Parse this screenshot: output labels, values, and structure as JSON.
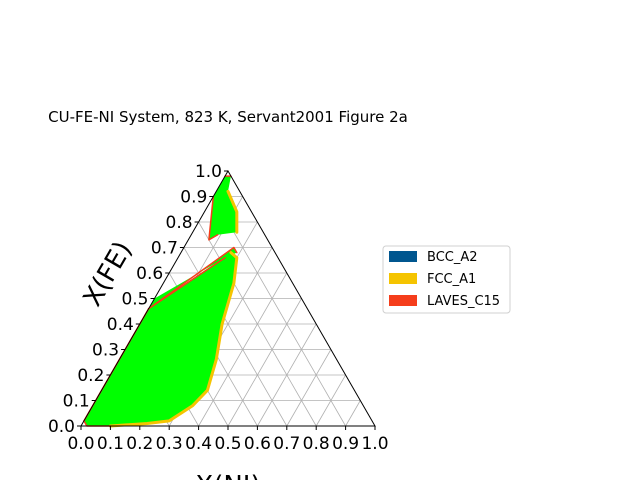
{
  "chart_data": {
    "type": "scatter",
    "title": "CU-FE-NI System, 823 K, Servant2001 Figure 2a",
    "xlabel": "X(NI)",
    "ylabel": "X(FE)",
    "xlim": [
      0,
      1
    ],
    "ylim": [
      0,
      1
    ],
    "grid": true,
    "legend_placement": "center-right",
    "x_tick_labels": [
      "0.0",
      "0.1",
      "0.2",
      "0.3",
      "0.4",
      "0.5",
      "0.6",
      "0.7",
      "0.8",
      "0.9",
      "1.0"
    ],
    "y_tick_labels": [
      "0.0",
      "0.1",
      "0.2",
      "0.3",
      "0.4",
      "0.5",
      "0.6",
      "0.7",
      "0.8",
      "0.9",
      "1.0"
    ],
    "legend": [
      {
        "name": "BCC_A2",
        "color": "#00568f"
      },
      {
        "name": "FCC_A1",
        "color": "#f5c400"
      },
      {
        "name": "LAVES_C15",
        "color": "#f53d1b"
      }
    ],
    "tie_line_color": "#00ff00",
    "regions": [
      {
        "kind": "two-phase",
        "color": "#00ff00",
        "boundary": [
          [
            0.0,
            0.98
          ],
          [
            0.02,
            0.98
          ],
          [
            0.04,
            0.92
          ],
          [
            0.11,
            0.84
          ],
          [
            0.15,
            0.76
          ],
          [
            0.09,
            0.75
          ],
          [
            0.07,
            0.73
          ],
          [
            0.0,
            0.9
          ]
        ]
      },
      {
        "kind": "two-phase",
        "color": "#00ff00",
        "boundary": [
          [
            0.0,
            0.46
          ],
          [
            0.17,
            0.7
          ],
          [
            0.19,
            0.68
          ],
          [
            0.16,
            0.66
          ],
          [
            0.0,
            0.5
          ]
        ]
      },
      {
        "kind": "two-phase",
        "color": "#00ff00",
        "boundary": [
          [
            0.0,
            0.46
          ],
          [
            0.17,
            0.68
          ],
          [
            0.2,
            0.66
          ],
          [
            0.24,
            0.56
          ],
          [
            0.28,
            0.4
          ],
          [
            0.33,
            0.26
          ],
          [
            0.36,
            0.14
          ],
          [
            0.34,
            0.08
          ],
          [
            0.29,
            0.02
          ],
          [
            0.22,
            0.01
          ],
          [
            0.1,
            0.0
          ],
          [
            0.02,
            0.0
          ],
          [
            0.0,
            0.02
          ]
        ]
      }
    ],
    "phase_boundaries": [
      {
        "phase": "FCC_A1",
        "points": [
          [
            0.17,
            0.68
          ],
          [
            0.2,
            0.66
          ],
          [
            0.24,
            0.56
          ],
          [
            0.28,
            0.4
          ],
          [
            0.33,
            0.26
          ],
          [
            0.36,
            0.14
          ],
          [
            0.34,
            0.08
          ],
          [
            0.29,
            0.02
          ],
          [
            0.22,
            0.01
          ],
          [
            0.1,
            0.0
          ]
        ]
      },
      {
        "phase": "FCC_A1",
        "points": [
          [
            0.15,
            0.76
          ],
          [
            0.11,
            0.84
          ],
          [
            0.04,
            0.92
          ]
        ]
      },
      {
        "phase": "LAVES_C15",
        "points": [
          [
            0.0,
            0.98
          ],
          [
            0.02,
            0.98
          ]
        ]
      },
      {
        "phase": "LAVES_C15",
        "points": [
          [
            0.0,
            0.9
          ],
          [
            0.07,
            0.73
          ],
          [
            0.09,
            0.75
          ]
        ]
      },
      {
        "phase": "LAVES_C15",
        "points": [
          [
            0.0,
            0.46
          ],
          [
            0.17,
            0.7
          ],
          [
            0.19,
            0.68
          ]
        ]
      },
      {
        "phase": "LAVES_C15",
        "points": [
          [
            0.0,
            0.46
          ],
          [
            0.16,
            0.66
          ]
        ]
      },
      {
        "phase": "LAVES_C15",
        "points": [
          [
            0.0,
            0.46
          ],
          [
            0.0,
            0.02
          ]
        ]
      },
      {
        "phase": "LAVES_C15",
        "points": [
          [
            0.0,
            0.02
          ],
          [
            0.02,
            0.0
          ],
          [
            0.1,
            0.0
          ]
        ]
      }
    ]
  }
}
